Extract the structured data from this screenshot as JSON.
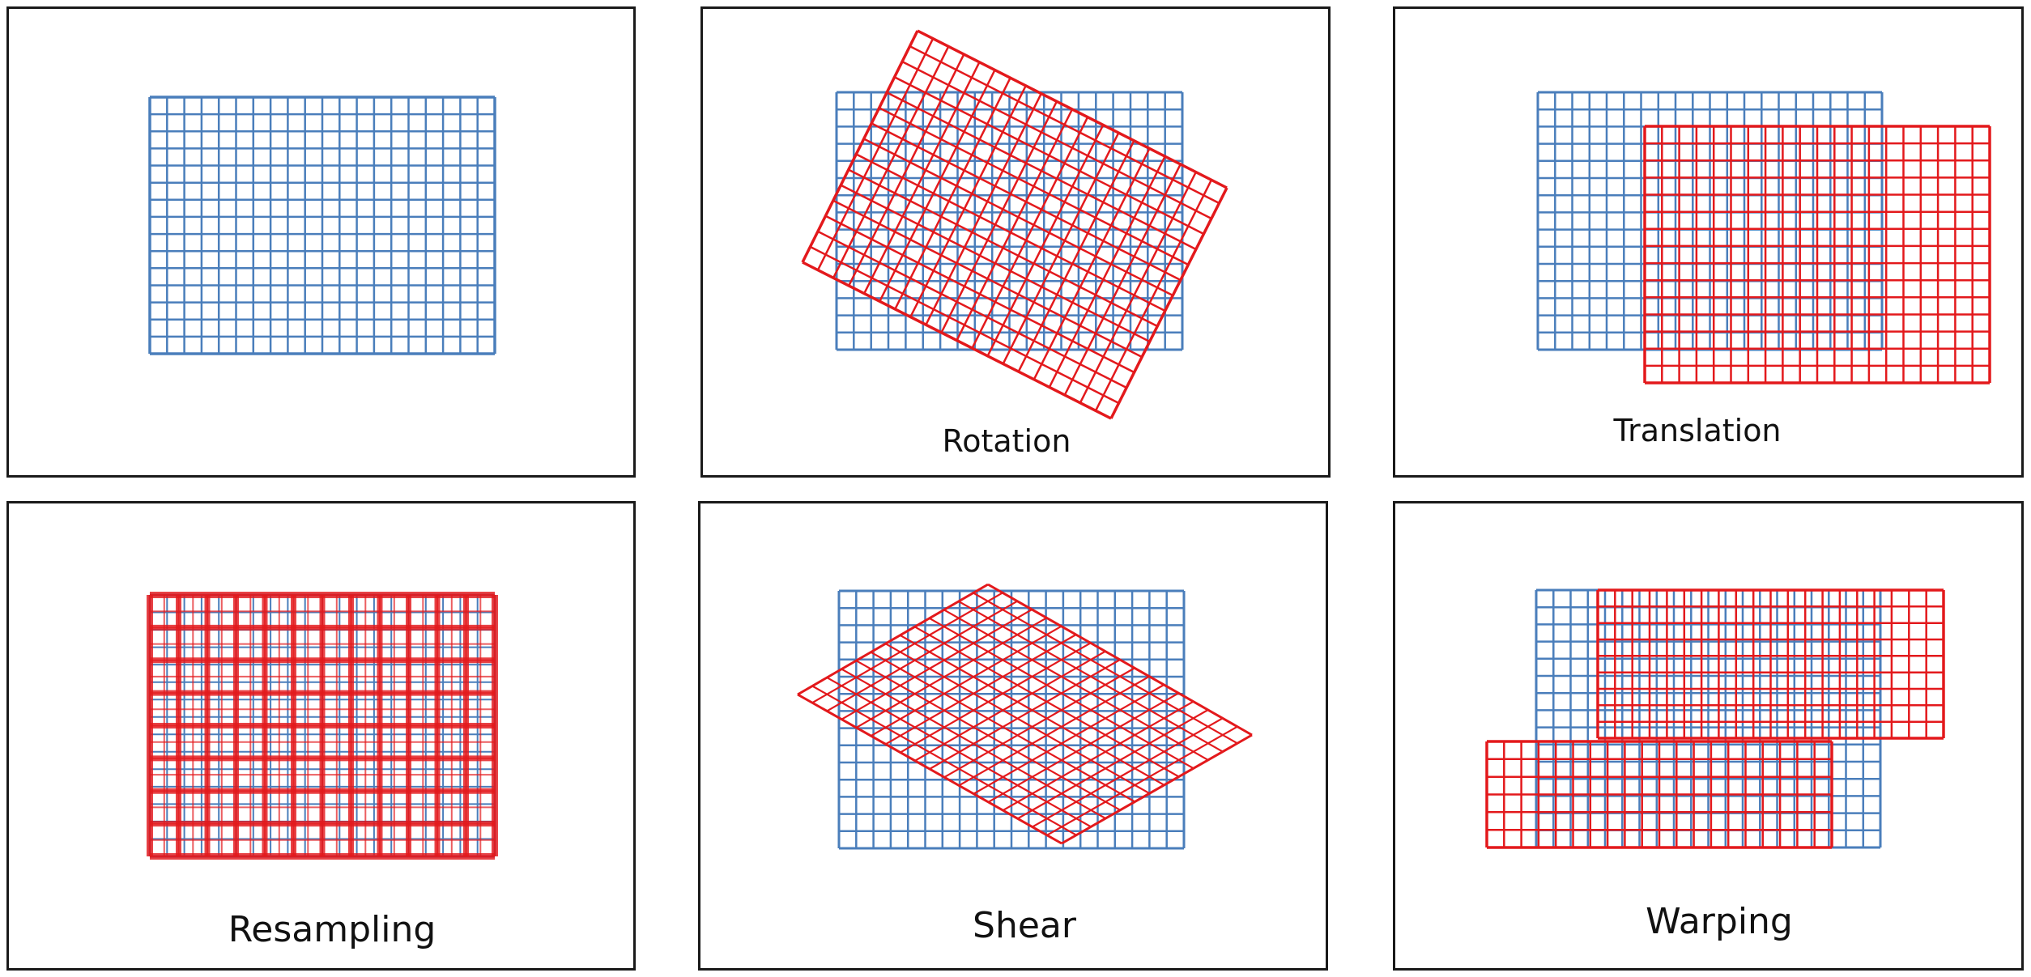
{
  "colors": {
    "original_grid": "#4a7ebb",
    "transformed_grid": "#e3191c",
    "panel_border": "#1a1a1a",
    "background": "#ffffff"
  },
  "panels": [
    {
      "id": "original",
      "caption": ""
    },
    {
      "id": "rotation",
      "caption": "Rotation"
    },
    {
      "id": "translation",
      "caption": "Translation"
    },
    {
      "id": "resampling",
      "caption": "Resampling"
    },
    {
      "id": "shear",
      "caption": "Shear"
    },
    {
      "id": "warping",
      "caption": "Warping"
    }
  ]
}
